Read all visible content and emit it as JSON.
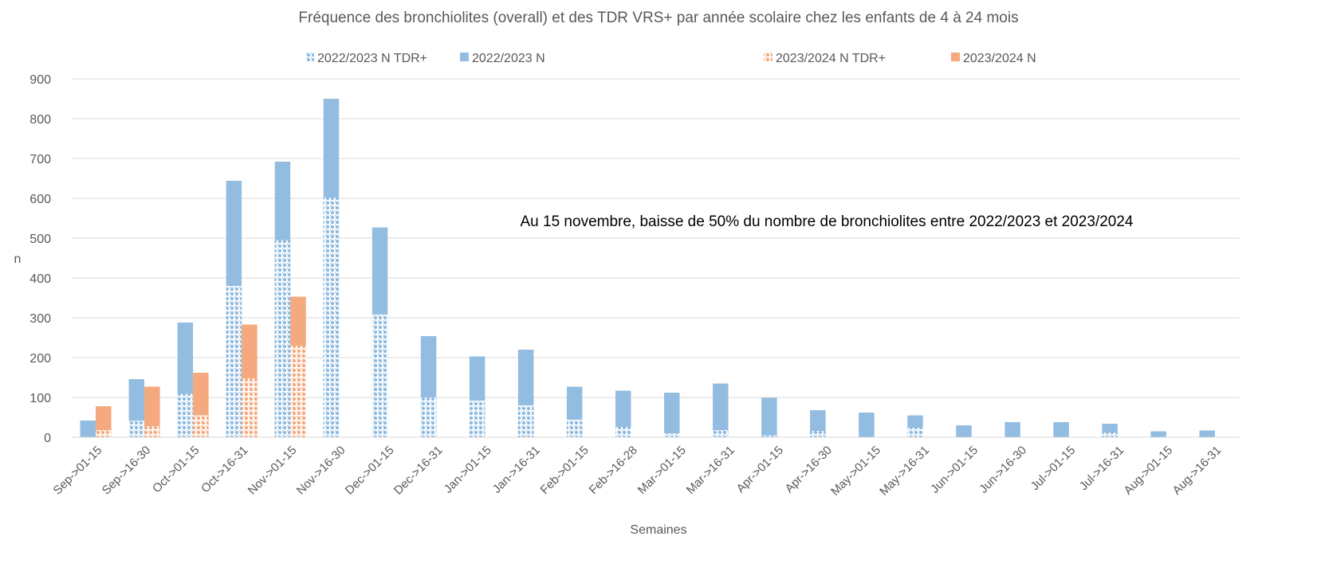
{
  "chart_data": {
    "type": "bar",
    "title": "Fréquence des bronchiolites (overall) et des TDR VRS+ par année scolaire chez les enfants de 4 à 24 mois",
    "xlabel": "Semaines",
    "ylabel": "n",
    "ylim": [
      0,
      900
    ],
    "yticks": [
      0,
      100,
      200,
      300,
      400,
      500,
      600,
      700,
      800,
      900
    ],
    "grid": true,
    "legend_position": "top",
    "annotation": "Au 15 novembre, baisse de 50% du nombre de bronchiolites entre 2022/2023 et 2023/2024",
    "categories": [
      "Sep->01-15",
      "Sep->16-30",
      "Oct->01-15",
      "Oct->16-31",
      "Nov->01-15",
      "Nov->16-30",
      "Dec->01-15",
      "Dec->16-31",
      "Jan->01-15",
      "Jan->16-31",
      "Feb->01-15",
      "Feb->16-28",
      "Mar->01-15",
      "Mar->16-31",
      "Apr->01-15",
      "Apr->16-30",
      "May->01-15",
      "May->16-31",
      "Jun->01-15",
      "Jun->16-30",
      "Jul->01-15",
      "Jul->16-31",
      "Aug->01-15",
      "Aug->16-31"
    ],
    "series": [
      {
        "name": "2022/2023 N TDR+",
        "color": "#8fbbe0",
        "pattern": "dotted",
        "values": [
          0,
          42,
          110,
          380,
          495,
          602,
          308,
          100,
          92,
          80,
          44,
          26,
          10,
          18,
          5,
          16,
          0,
          24,
          0,
          0,
          0,
          12,
          0,
          0
        ]
      },
      {
        "name": "2022/2023 N",
        "color": "#93bde0",
        "values": [
          42,
          146,
          288,
          644,
          692,
          850,
          527,
          254,
          203,
          220,
          127,
          117,
          112,
          135,
          99,
          68,
          62,
          55,
          30,
          38,
          38,
          34,
          15,
          17
        ]
      },
      {
        "name": "2023/2024 N TDR+",
        "color": "#f4a97e",
        "pattern": "dotted",
        "values": [
          18,
          28,
          55,
          148,
          230,
          null,
          null,
          null,
          null,
          null,
          null,
          null,
          null,
          null,
          null,
          null,
          null,
          null,
          null,
          null,
          null,
          null,
          null,
          null
        ]
      },
      {
        "name": "2023/2024 N",
        "color": "#f4a97e",
        "values": [
          78,
          127,
          162,
          283,
          353,
          null,
          null,
          null,
          null,
          null,
          null,
          null,
          null,
          null,
          null,
          null,
          null,
          null,
          null,
          null,
          null,
          null,
          null,
          null
        ]
      }
    ]
  }
}
